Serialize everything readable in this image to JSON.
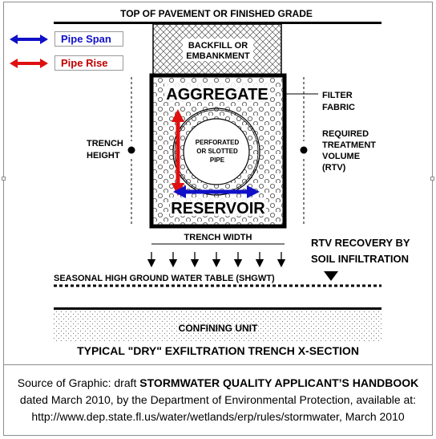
{
  "legend": {
    "span_label": "Pipe Span",
    "rise_label": "Pipe Rise",
    "span_color": "#1010c8",
    "rise_color": "#e01010"
  },
  "diagram": {
    "top_label": "TOP OF PAVEMENT OR FINISHED GRADE",
    "backfill_line1": "BACKFILL OR",
    "backfill_line2": "EMBANKMENT",
    "aggregate": "AGGREGATE",
    "reservoir": "RESERVOIR",
    "pipe_line1": "PERFORATED",
    "pipe_line2": "OR SLOTTED",
    "pipe_line3": "PIPE",
    "filter_line1": "FILTER",
    "filter_line2": "FABRIC",
    "rtv_line1": "REQUIRED",
    "rtv_line2": "TREATMENT",
    "rtv_line3": "VOLUME",
    "rtv_line4": "(RTV)",
    "trench_height_line1": "TRENCH",
    "trench_height_line2": "HEIGHT",
    "trench_width": "TRENCH WIDTH",
    "recovery_line1": "RTV RECOVERY BY",
    "recovery_line2": "SOIL INFILTRATION",
    "shgwt": "SEASONAL HIGH GROUND WATER TABLE (SHGWT)",
    "confining": "CONFINING UNIT",
    "section_title": "TYPICAL \"DRY\" EXFILTRATION TRENCH X-SECTION"
  },
  "caption": {
    "prefix": "Source of Graphic: draft ",
    "handbook": "STORMWATER QUALITY APPLICANT’S HANDBOOK",
    "line2": "dated March 2010, by the Department of Environmental Protection, available at:",
    "line3": "http://www.dep.state.fl.us/water/wetlands/erp/rules/stormwater, March 2010"
  }
}
